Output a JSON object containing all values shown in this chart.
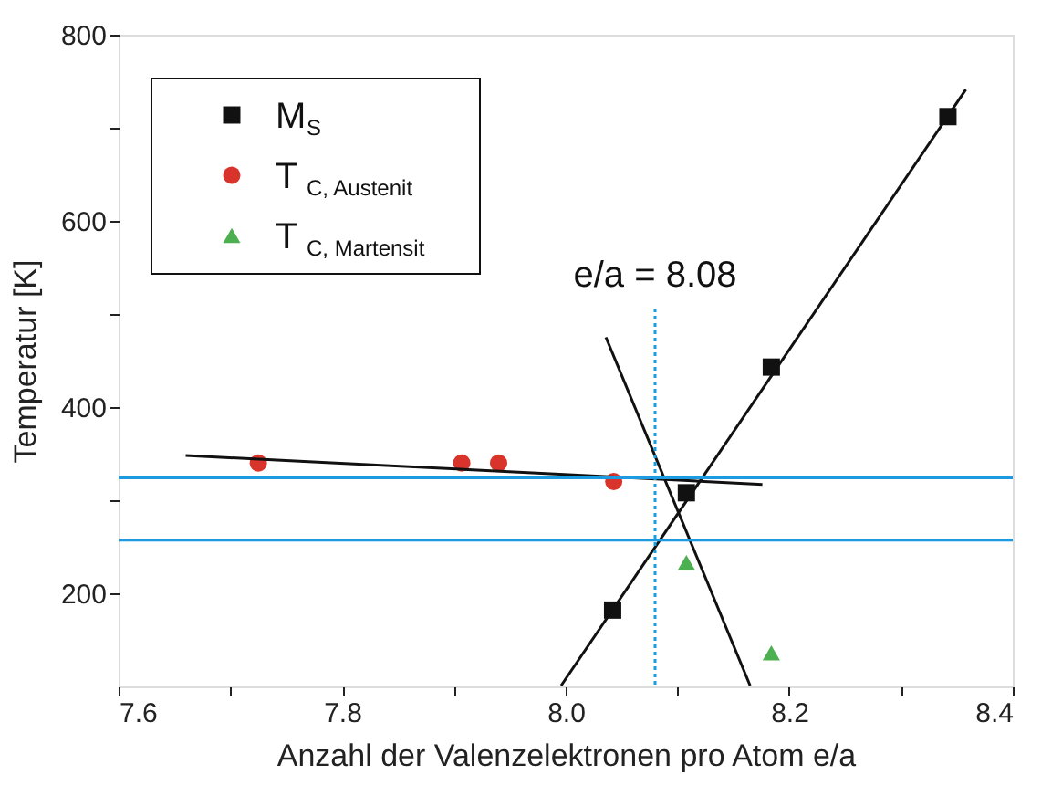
{
  "chart_data": {
    "type": "scatter",
    "xlabel": "Anzahl der Valenzelektronen pro Atom e/a",
    "ylabel": "Temperatur [K]",
    "xlim": [
      7.6,
      8.4
    ],
    "ylim": [
      100,
      800
    ],
    "xticks": [
      7.6,
      {
        "value": 7.7,
        "label": null
      },
      7.8,
      {
        "value": 7.9,
        "label": null
      },
      {
        "value": 8,
        "label": "8.0"
      },
      {
        "value": 8.1,
        "label": null
      },
      8.2,
      {
        "value": 8.3,
        "label": null
      },
      8.4
    ],
    "yticks": [
      200,
      {
        "value": 300,
        "label": null
      },
      400,
      {
        "value": 500,
        "label": null
      },
      600,
      {
        "value": 700,
        "label": null
      },
      800
    ],
    "grid": false,
    "legend": "top left",
    "series": [
      {
        "name": "M$_{S}$",
        "marker": "square",
        "color": "#111111",
        "x": [
          8.042,
          8.108,
          8.184,
          8.342
        ],
        "values": [
          182,
          308,
          443,
          712
        ]
      },
      {
        "name": "T$_{C, Austenit}$",
        "marker": "circle",
        "color": "#d9342b",
        "x": [
          7.725,
          7.907,
          7.94,
          8.043
        ],
        "values": [
          340,
          340,
          340,
          320
        ]
      },
      {
        "name": "T$_{C, Martensit}$",
        "marker": "triangle",
        "color": "#4caf50",
        "x": [
          8.108,
          8.184
        ],
        "values": [
          233,
          136
        ]
      },
      {
        "type": "line",
        "marker": "none",
        "line_style": "solid",
        "color": "#111111",
        "x": [
          7.66,
          8.176
        ],
        "values": [
          348,
          317
        ]
      },
      {
        "type": "line",
        "marker": "none",
        "line_style": "solid",
        "color": "#111111",
        "x": [
          7.996,
          8.358
        ],
        "values": [
          101,
          741
        ]
      },
      {
        "type": "line",
        "marker": "none",
        "line_style": "solid",
        "color": "#111111",
        "x": [
          8.036,
          8.165
        ],
        "values": [
          475,
          101
        ]
      }
    ],
    "ref_lines": [
      {
        "axis": "y",
        "value": 324,
        "color": "#1e9be0",
        "line_style": "solid"
      },
      {
        "axis": "y",
        "value": 257,
        "color": "#1e9be0",
        "line_style": "solid"
      },
      {
        "axis": "x",
        "value": 8.08,
        "label": "e/a = 8.08",
        "color": "#1e9be0",
        "line_style": "dotted"
      }
    ]
  }
}
